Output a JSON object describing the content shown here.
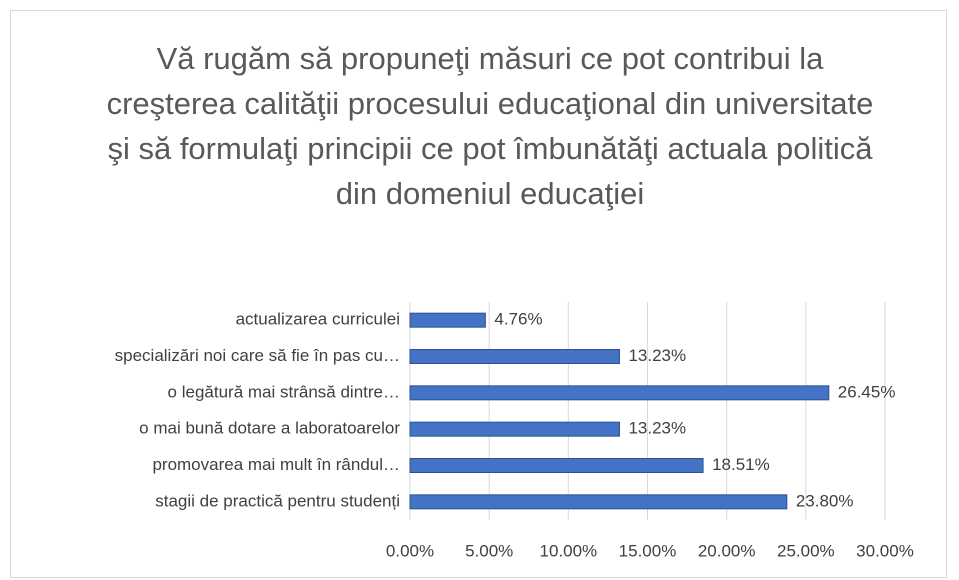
{
  "chart_data": {
    "type": "barh",
    "title": "Vă rugăm să propuneţi măsuri ce pot contribui la creşterea calităţii procesului educaţional din universitate şi să formulaţi principii ce pot îmbunătăţi actuala politică din domeniul educaţiei",
    "categories": [
      "actualizarea curriculei",
      "specializări noi care să fie în pas cu…",
      "o legătură mai strânsă dintre…",
      "o mai bună dotare a laboratoarelor",
      "promovarea mai mult în rândul…",
      "stagii de practică pentru studenți"
    ],
    "values": [
      4.76,
      13.23,
      26.45,
      13.23,
      18.51,
      23.8
    ],
    "value_labels": [
      "4.76%",
      "13.23%",
      "26.45%",
      "13.23%",
      "18.51%",
      "23.80%"
    ],
    "color": "#4472c4",
    "xlim": [
      0,
      30
    ],
    "xticks": [
      {
        "value": 0,
        "label": "0.00%"
      },
      {
        "value": 5,
        "label": "5.00%"
      },
      {
        "value": 10,
        "label": "10.00%"
      },
      {
        "value": 15,
        "label": "15.00%"
      },
      {
        "value": 20,
        "label": "20.00%"
      },
      {
        "value": 25,
        "label": "25.00%"
      },
      {
        "value": 30,
        "label": "30.00%"
      }
    ],
    "grid": true
  }
}
